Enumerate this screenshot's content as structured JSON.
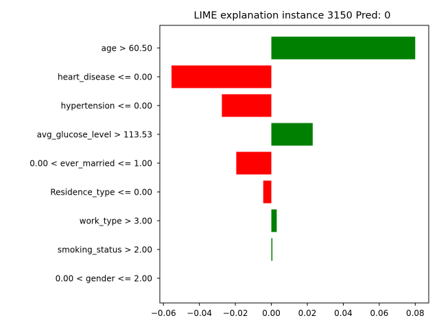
{
  "chart_data": {
    "type": "bar",
    "orientation": "horizontal",
    "title": "LIME explanation instance 3150 Pred: 0",
    "xlabel": "",
    "ylabel": "",
    "xlim": [
      -0.062,
      0.0875
    ],
    "xticks": [
      -0.06,
      -0.04,
      -0.02,
      0.0,
      0.02,
      0.04,
      0.06,
      0.08
    ],
    "xtick_labels": [
      "−0.06",
      "−0.04",
      "−0.02",
      "0.00",
      "0.02",
      "0.04",
      "0.06",
      "0.08"
    ],
    "categories": [
      "age > 60.50",
      "heart_disease <= 0.00",
      "hypertension <= 0.00",
      "avg_glucose_level > 113.53",
      "0.00 < ever_married <= 1.00",
      "Residence_type <= 0.00",
      "work_type > 3.00",
      "smoking_status > 2.00",
      "0.00 < gender <= 2.00"
    ],
    "values": [
      0.08,
      -0.0555,
      -0.0275,
      0.023,
      -0.0195,
      -0.0045,
      0.003,
      0.0006,
      0.0
    ],
    "colors": {
      "positive": "#008000",
      "negative": "#ff0000"
    },
    "grid": false
  }
}
